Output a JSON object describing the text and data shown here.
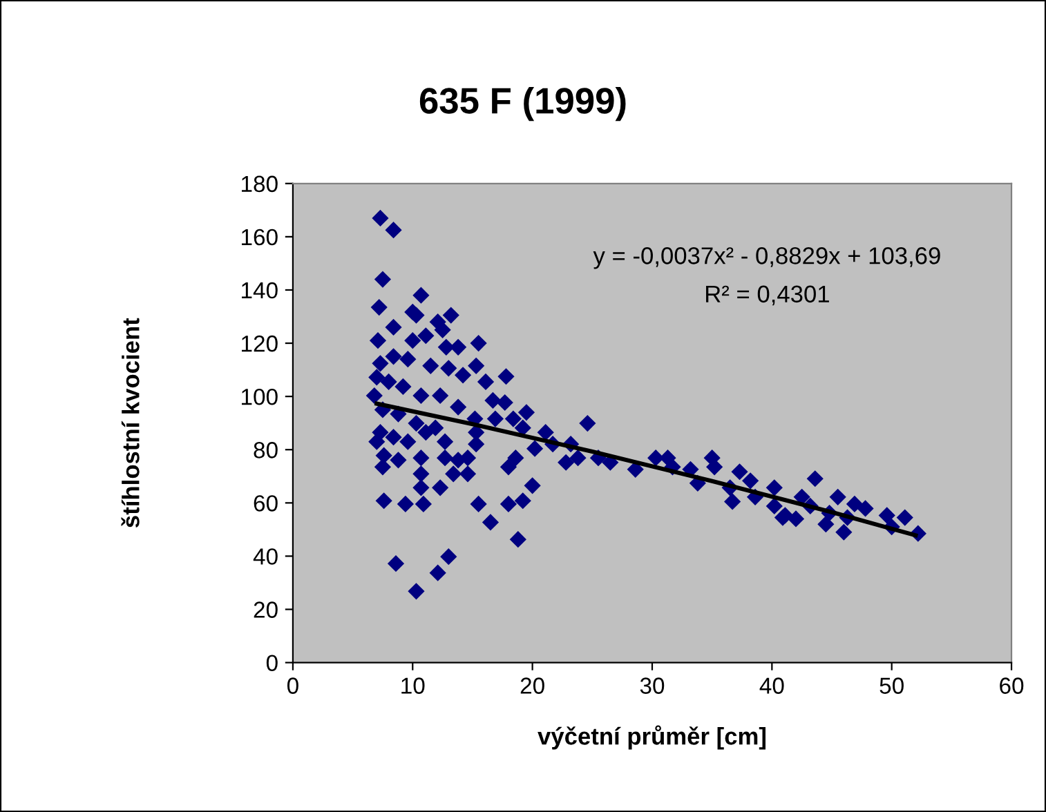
{
  "chart_data": {
    "type": "scatter",
    "title": "635 F (1999)",
    "xlabel": "výčetní průměr [cm]",
    "ylabel": "štíhlostní kvocient",
    "xlim": [
      0,
      60
    ],
    "xticks": [
      0,
      10,
      20,
      30,
      40,
      50,
      60
    ],
    "ylim": [
      0,
      180
    ],
    "yticks": [
      0,
      20,
      40,
      60,
      80,
      100,
      120,
      140,
      160,
      180
    ],
    "grid": false,
    "legend": false,
    "annotations": [
      "y = -0,0037x² - 0,8829x + 103,69",
      "R² = 0,4301"
    ],
    "series": [
      {
        "color": "#000080",
        "marker": "diamond",
        "x": [
          7.3,
          8.4,
          7.5,
          10.7,
          7.2,
          10,
          10.3,
          13.2,
          8.4,
          12.1,
          12.5,
          11.1,
          7.1,
          10,
          15.5,
          12.8,
          13.8,
          7.3,
          8.4,
          9.6,
          11.5,
          13,
          15.3,
          17.8,
          14.2,
          16.1,
          7,
          8,
          9.2,
          10.7,
          12.3,
          6.8,
          16.7,
          17.7,
          7.5,
          8.8,
          10.3,
          11.9,
          13.8,
          15.2,
          16.9,
          19.5,
          18.4,
          19.2,
          21.1,
          7.3,
          8.4,
          9.6,
          11.1,
          12.7,
          7,
          15.3,
          15.3,
          20.2,
          7.6,
          8.8,
          7.5,
          10.7,
          12.7,
          13.8,
          14.6,
          18.6,
          18,
          13.4,
          14.6,
          10.7,
          10.7,
          12.3,
          20,
          7.6,
          9.4,
          10.9,
          15.5,
          18,
          19.2,
          16.5,
          18.8,
          8.6,
          13,
          12.1,
          10.3,
          24.6,
          21.7,
          23.2,
          22.8,
          23.8,
          25.5,
          26.5,
          28.6,
          30.3,
          31.3,
          31.7,
          33.2,
          33.8,
          35,
          35.2,
          37.3,
          38.2,
          36.5,
          36.7,
          40.2,
          38.6,
          40.2,
          41.1,
          42.5,
          43.6,
          43.2,
          45.5,
          46.9,
          47.8,
          44.8,
          46.3,
          49.6,
          51.1,
          40.9,
          52.2,
          46,
          44.5,
          42,
          50
        ],
        "values": [
          167,
          162.5,
          144,
          138,
          133.5,
          131.7,
          130.5,
          130.5,
          126,
          128,
          125,
          122.8,
          121,
          121,
          120,
          118.5,
          118.5,
          112.4,
          115,
          114,
          111.5,
          110.6,
          111.5,
          107.5,
          108,
          105.5,
          107.2,
          105.5,
          103.7,
          100.3,
          100.3,
          100.3,
          98.5,
          97.7,
          95,
          93.4,
          89.9,
          88.2,
          96,
          91.6,
          91.6,
          94,
          91.6,
          88.2,
          86.5,
          86.5,
          84.7,
          83,
          86.5,
          83,
          83,
          86.5,
          82.1,
          80.4,
          77.8,
          76.1,
          73.5,
          76.9,
          76.9,
          76.1,
          76.9,
          76.9,
          73.5,
          70.9,
          70.9,
          70.9,
          65.7,
          65.7,
          66.5,
          60.8,
          59.6,
          59.6,
          59.6,
          59.6,
          60.8,
          52.7,
          46.3,
          37.2,
          39.8,
          33.7,
          26.8,
          89.9,
          82.1,
          82.1,
          75.2,
          76.9,
          76.9,
          75.2,
          72.6,
          76.9,
          76.9,
          73.5,
          72.6,
          67.4,
          76.9,
          73.5,
          71.7,
          68.3,
          65.7,
          60.5,
          65.7,
          62.2,
          58.8,
          55.3,
          62.2,
          69.1,
          58.8,
          62.2,
          59.6,
          57.9,
          56.2,
          54.5,
          55.3,
          54.5,
          54.5,
          48.5,
          49,
          52,
          54,
          51
        ]
      },
      {
        "type": "line",
        "color": "#000000",
        "x": [
          7,
          15,
          25,
          35,
          45,
          52
        ],
        "values": [
          97.3,
          89.6,
          79.3,
          68.2,
          56.5,
          47.8
        ]
      }
    ]
  }
}
